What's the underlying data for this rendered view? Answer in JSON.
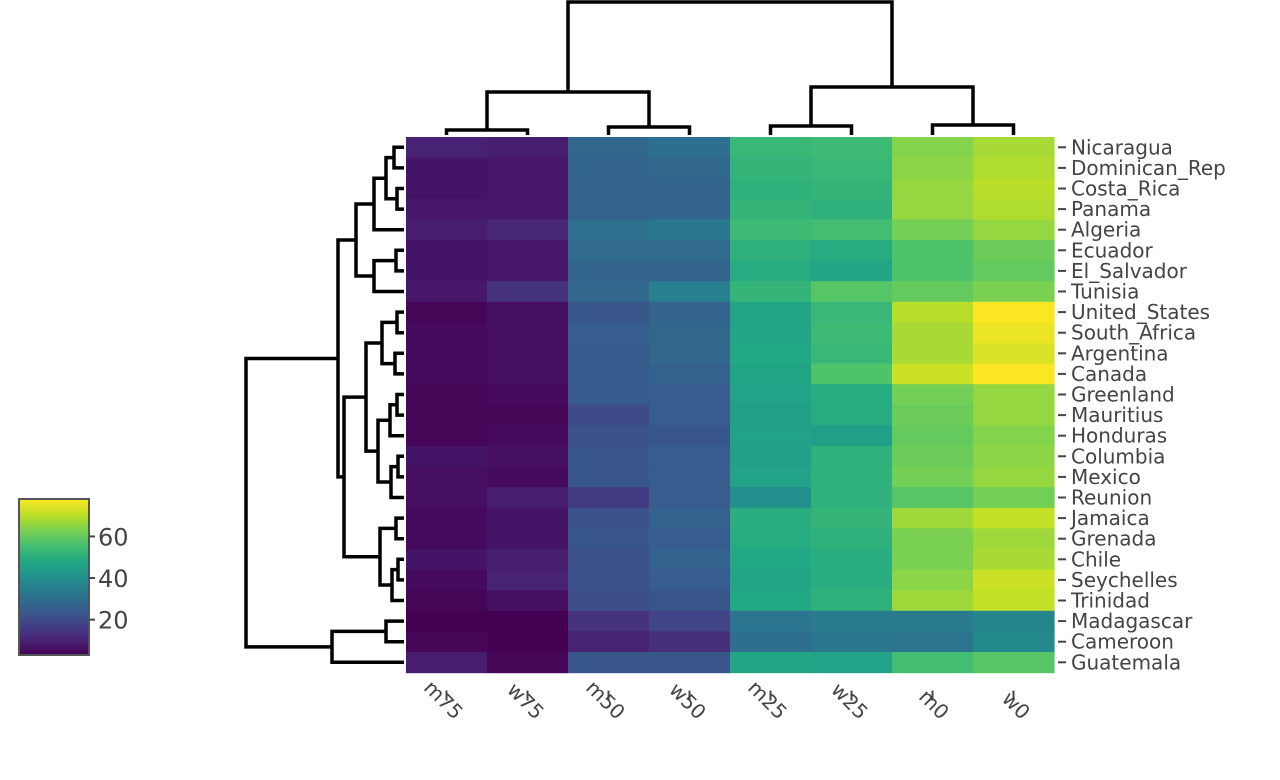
{
  "chart_data": {
    "type": "heatmap",
    "colormap": "viridis",
    "columns": [
      "m75",
      "w75",
      "m50",
      "w50",
      "m25",
      "w25",
      "m0",
      "w0"
    ],
    "rows": [
      "Nicaragua",
      "Dominican_Rep",
      "Costa_Rica",
      "Panama",
      "Algeria",
      "Ecuador",
      "El_Salvador",
      "Tunisia",
      "United_States",
      "South_Africa",
      "Argentina",
      "Canada",
      "Greenland",
      "Mauritius",
      "Honduras",
      "Columbia",
      "Mexico",
      "Reunion",
      "Jamaica",
      "Grenada",
      "Chile",
      "Seychelles",
      "Trinidad",
      "Madagascar",
      "Cameroon",
      "Guatemala"
    ],
    "values": [
      [
        10,
        9,
        28,
        30,
        53,
        54,
        64,
        68
      ],
      [
        7,
        8,
        27,
        28,
        52,
        53,
        65,
        69
      ],
      [
        7,
        8,
        26,
        27,
        51,
        52,
        66,
        70
      ],
      [
        8,
        8,
        26,
        27,
        52,
        51,
        66,
        69
      ],
      [
        9,
        11,
        31,
        33,
        54,
        55,
        62,
        66
      ],
      [
        7,
        8,
        29,
        29,
        51,
        49,
        57,
        61
      ],
      [
        7,
        8,
        27,
        27,
        49,
        47,
        57,
        60
      ],
      [
        8,
        14,
        28,
        35,
        52,
        58,
        60,
        63
      ],
      [
        4,
        6,
        23,
        27,
        47,
        53,
        70,
        78
      ],
      [
        5,
        6,
        25,
        28,
        47,
        54,
        68,
        76
      ],
      [
        5,
        6,
        24,
        28,
        48,
        53,
        68,
        74
      ],
      [
        5,
        6,
        24,
        26,
        47,
        57,
        72,
        79
      ],
      [
        4,
        5,
        24,
        25,
        46,
        49,
        62,
        66
      ],
      [
        4,
        4,
        20,
        25,
        45,
        49,
        61,
        66
      ],
      [
        4,
        5,
        22,
        23,
        46,
        45,
        60,
        64
      ],
      [
        7,
        6,
        23,
        25,
        45,
        51,
        61,
        65
      ],
      [
        6,
        5,
        23,
        25,
        46,
        51,
        62,
        66
      ],
      [
        6,
        9,
        16,
        25,
        40,
        51,
        58,
        62
      ],
      [
        5,
        7,
        22,
        26,
        50,
        52,
        67,
        71
      ],
      [
        5,
        7,
        23,
        25,
        49,
        51,
        63,
        67
      ],
      [
        7,
        9,
        22,
        26,
        48,
        50,
        63,
        68
      ],
      [
        5,
        10,
        22,
        25,
        47,
        50,
        65,
        72
      ],
      [
        4,
        6,
        21,
        23,
        48,
        51,
        67,
        71
      ],
      [
        3,
        3,
        14,
        18,
        32,
        34,
        34,
        37
      ],
      [
        4,
        3,
        10,
        13,
        30,
        33,
        32,
        38
      ],
      [
        9,
        4,
        23,
        23,
        47,
        46,
        55,
        58
      ]
    ],
    "colorbar": {
      "ticks": [
        20,
        40,
        60
      ],
      "range": [
        3,
        78
      ]
    },
    "row_dendrogram": true,
    "column_dendrogram": true,
    "title": "",
    "xlabel": "",
    "ylabel": ""
  }
}
